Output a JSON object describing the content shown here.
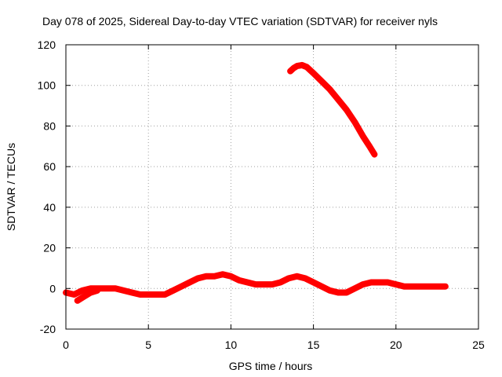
{
  "chart_data": {
    "type": "line",
    "title": "Day 078 of 2025, Sidereal Day-to-day VTEC variation (SDTVAR) for receiver nyls",
    "xlabel": "GPS time / hours",
    "ylabel": "SDTVAR / TECUs",
    "xlim": [
      0,
      25
    ],
    "ylim": [
      -20,
      120
    ],
    "xticks": [
      0,
      5,
      10,
      15,
      20,
      25
    ],
    "yticks": [
      -20,
      0,
      20,
      40,
      60,
      80,
      100,
      120
    ],
    "grid": true,
    "series": [
      {
        "name": "near-zero arc",
        "color": "#ff0000",
        "points": [
          [
            0.0,
            -2
          ],
          [
            0.5,
            -3
          ],
          [
            1.0,
            -1
          ],
          [
            1.5,
            0
          ],
          [
            2.0,
            0
          ],
          [
            2.5,
            0
          ],
          [
            3.0,
            0
          ],
          [
            3.5,
            -1
          ],
          [
            4.0,
            -2
          ],
          [
            4.5,
            -3
          ],
          [
            5.0,
            -3
          ],
          [
            5.5,
            -3
          ],
          [
            6.0,
            -3
          ],
          [
            6.5,
            -1
          ],
          [
            7.0,
            1
          ],
          [
            7.5,
            3
          ],
          [
            8.0,
            5
          ],
          [
            8.5,
            6
          ],
          [
            9.0,
            6
          ],
          [
            9.5,
            7
          ],
          [
            10.0,
            6
          ],
          [
            10.5,
            4
          ],
          [
            11.0,
            3
          ],
          [
            11.5,
            2
          ],
          [
            12.0,
            2
          ],
          [
            12.5,
            2
          ],
          [
            13.0,
            3
          ],
          [
            13.5,
            5
          ],
          [
            14.0,
            6
          ],
          [
            14.5,
            5
          ],
          [
            15.0,
            3
          ],
          [
            15.5,
            1
          ],
          [
            16.0,
            -1
          ],
          [
            16.5,
            -2
          ],
          [
            17.0,
            -2
          ],
          [
            17.5,
            0
          ],
          [
            18.0,
            2
          ],
          [
            18.5,
            3
          ],
          [
            19.0,
            3
          ],
          [
            19.5,
            3
          ],
          [
            20.0,
            2
          ],
          [
            20.5,
            1
          ],
          [
            21.0,
            1
          ],
          [
            21.5,
            1
          ],
          [
            22.0,
            1
          ],
          [
            22.5,
            1
          ],
          [
            23.0,
            1
          ]
        ]
      },
      {
        "name": "low spur",
        "color": "#ff0000",
        "points": [
          [
            0.7,
            -6
          ],
          [
            1.1,
            -4
          ],
          [
            1.5,
            -2
          ],
          [
            1.9,
            -1
          ]
        ]
      },
      {
        "name": "high arc",
        "color": "#ff0000",
        "points": [
          [
            13.6,
            107
          ],
          [
            13.8,
            108.5
          ],
          [
            14.0,
            109.5
          ],
          [
            14.3,
            110
          ],
          [
            14.6,
            109
          ],
          [
            15.0,
            106
          ],
          [
            15.5,
            102
          ],
          [
            16.0,
            98
          ],
          [
            16.5,
            93
          ],
          [
            17.0,
            88
          ],
          [
            17.5,
            82
          ],
          [
            18.0,
            75
          ],
          [
            18.4,
            70
          ],
          [
            18.7,
            66
          ]
        ]
      }
    ]
  }
}
